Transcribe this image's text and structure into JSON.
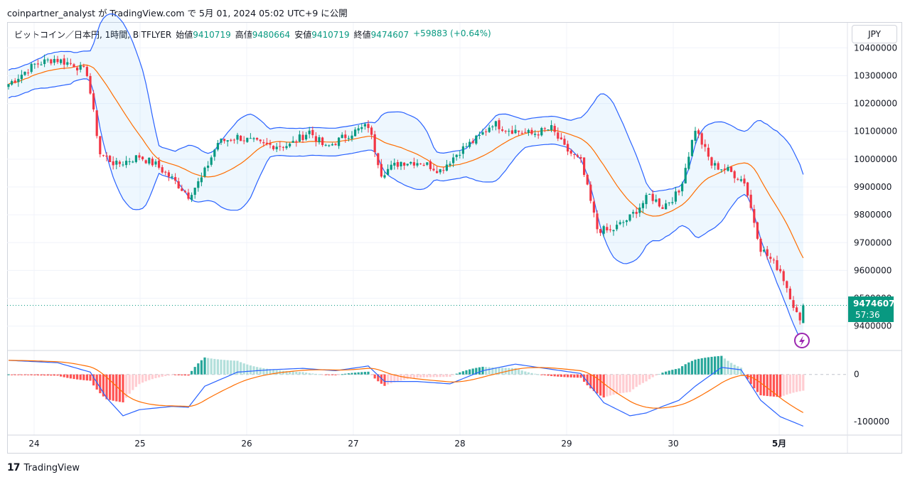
{
  "caption": "coinpartner_analyst が TradingView.com で 5月 01, 2024 05:02 UTC+9 に公開",
  "legend": {
    "symbol": "ビットコイン／日本円, 1時間, BITFLYER",
    "open_label": "始値",
    "open": "9410719",
    "high_label": "高値",
    "high": "9480664",
    "low_label": "安値",
    "low": "9410719",
    "close_label": "終値",
    "close": "9474607",
    "change": "+59883 (+0.64%)"
  },
  "currency": "JPY",
  "price_badge": {
    "price": "9474607",
    "countdown": "57:36"
  },
  "footer": {
    "brand": "TradingView"
  },
  "colors": {
    "up": "#089981",
    "down": "#f23645",
    "band": "#2962ff",
    "basis": "#ff6d00"
  },
  "chart_data": [
    {
      "type": "candlestick",
      "title": "",
      "ylim": [
        9320000,
        10480000
      ],
      "x_ticks": [
        "24",
        "25",
        "26",
        "27",
        "28",
        "29",
        "30",
        "5月"
      ],
      "y_ticks": [
        "10400000",
        "10300000",
        "10200000",
        "10100000",
        "10000000",
        "9900000",
        "9800000",
        "9700000",
        "9600000",
        "9500000",
        "9400000"
      ],
      "last_price": 9474607,
      "overlay": "bollinger_bands",
      "anchors_close": [
        [
          0,
          10270000
        ],
        [
          8,
          10340000
        ],
        [
          14,
          10360000
        ],
        [
          20,
          10340000
        ],
        [
          24,
          10310000
        ],
        [
          28,
          10020000
        ],
        [
          33,
          9980000
        ],
        [
          40,
          10010000
        ],
        [
          45,
          9980000
        ],
        [
          50,
          9930000
        ],
        [
          55,
          9870000
        ],
        [
          59,
          9930000
        ],
        [
          64,
          10060000
        ],
        [
          70,
          10080000
        ],
        [
          78,
          10050000
        ],
        [
          86,
          10050000
        ],
        [
          92,
          10100000
        ],
        [
          97,
          10040000
        ],
        [
          104,
          10090000
        ],
        [
          110,
          10120000
        ],
        [
          114,
          9950000
        ],
        [
          120,
          9990000
        ],
        [
          126,
          9990000
        ],
        [
          132,
          9960000
        ],
        [
          138,
          10030000
        ],
        [
          144,
          10080000
        ],
        [
          148,
          10130000
        ],
        [
          152,
          10110000
        ],
        [
          160,
          10090000
        ],
        [
          166,
          10110000
        ],
        [
          170,
          10040000
        ],
        [
          175,
          9990000
        ],
        [
          180,
          9750000
        ],
        [
          184,
          9740000
        ],
        [
          190,
          9790000
        ],
        [
          196,
          9870000
        ],
        [
          200,
          9830000
        ],
        [
          205,
          9880000
        ],
        [
          210,
          10110000
        ],
        [
          215,
          9980000
        ],
        [
          220,
          9960000
        ],
        [
          225,
          9920000
        ],
        [
          230,
          9680000
        ],
        [
          236,
          9600000
        ],
        [
          239,
          9510000
        ],
        [
          242,
          9410000
        ],
        [
          243,
          9474607
        ]
      ]
    },
    {
      "type": "histogram",
      "title": "",
      "ylim": [
        -120000,
        45000
      ],
      "y_ticks": [
        "0",
        "-100000"
      ],
      "overlay": "macd_signal_lines",
      "anchors_macd": [
        [
          0,
          30000
        ],
        [
          15,
          25000
        ],
        [
          25,
          5000
        ],
        [
          30,
          -50000
        ],
        [
          35,
          -88000
        ],
        [
          40,
          -75000
        ],
        [
          50,
          -68000
        ],
        [
          55,
          -70000
        ],
        [
          60,
          -25000
        ],
        [
          70,
          5000
        ],
        [
          80,
          10000
        ],
        [
          90,
          13000
        ],
        [
          100,
          8000
        ],
        [
          110,
          18000
        ],
        [
          115,
          -15000
        ],
        [
          125,
          -15000
        ],
        [
          135,
          -20000
        ],
        [
          145,
          8000
        ],
        [
          155,
          22000
        ],
        [
          165,
          12000
        ],
        [
          175,
          2000
        ],
        [
          182,
          -60000
        ],
        [
          190,
          -88000
        ],
        [
          195,
          -82000
        ],
        [
          200,
          -68000
        ],
        [
          205,
          -55000
        ],
        [
          210,
          -25000
        ],
        [
          218,
          15000
        ],
        [
          224,
          10000
        ],
        [
          230,
          -55000
        ],
        [
          236,
          -90000
        ],
        [
          243,
          -110000
        ]
      ]
    }
  ]
}
